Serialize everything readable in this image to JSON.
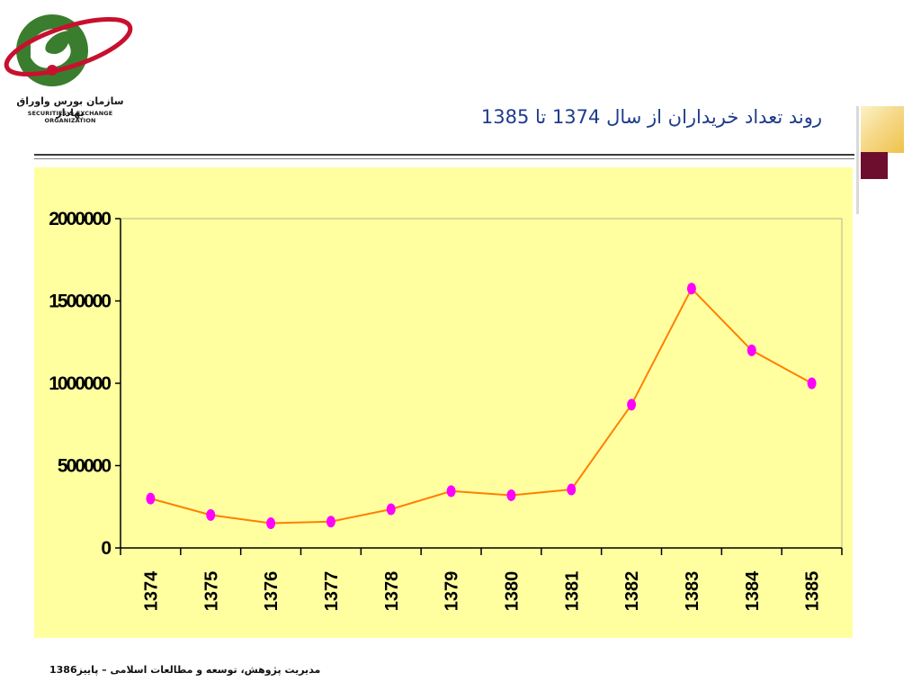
{
  "logo": {
    "name_fa": "سازمان بورس واوراق بهادار",
    "name_en": "SECURITIES & EXCHANGE ORGANIZATION"
  },
  "slide": {
    "title": "روند تعداد خریداران از سال 1374 تا 1385"
  },
  "footer": {
    "text": "مدیریت پژوهش، توسعه و مطالعات اسلامی – پاییز1386"
  },
  "colors": {
    "plot_background": "#ffffa0",
    "line": "#ff8000",
    "marker": "#ff00ff",
    "title": "#1f3c8c"
  },
  "chart_data": {
    "type": "line",
    "title": "",
    "xlabel": "",
    "ylabel": "",
    "categories": [
      "1374",
      "1375",
      "1376",
      "1377",
      "1378",
      "1379",
      "1380",
      "1381",
      "1382",
      "1383",
      "1384",
      "1385"
    ],
    "series": [
      {
        "values": [
          300000,
          200000,
          150000,
          160000,
          235000,
          345000,
          320000,
          355000,
          870000,
          1575000,
          1200000,
          1000000
        ]
      }
    ],
    "ylim": [
      0,
      2000000
    ],
    "yticks": [
      0,
      500000,
      1000000,
      1500000,
      2000000
    ],
    "ytick_labels": [
      "0",
      "500000",
      "1000000",
      "1500000",
      "2000000"
    ],
    "grid": false,
    "legend": "none"
  }
}
